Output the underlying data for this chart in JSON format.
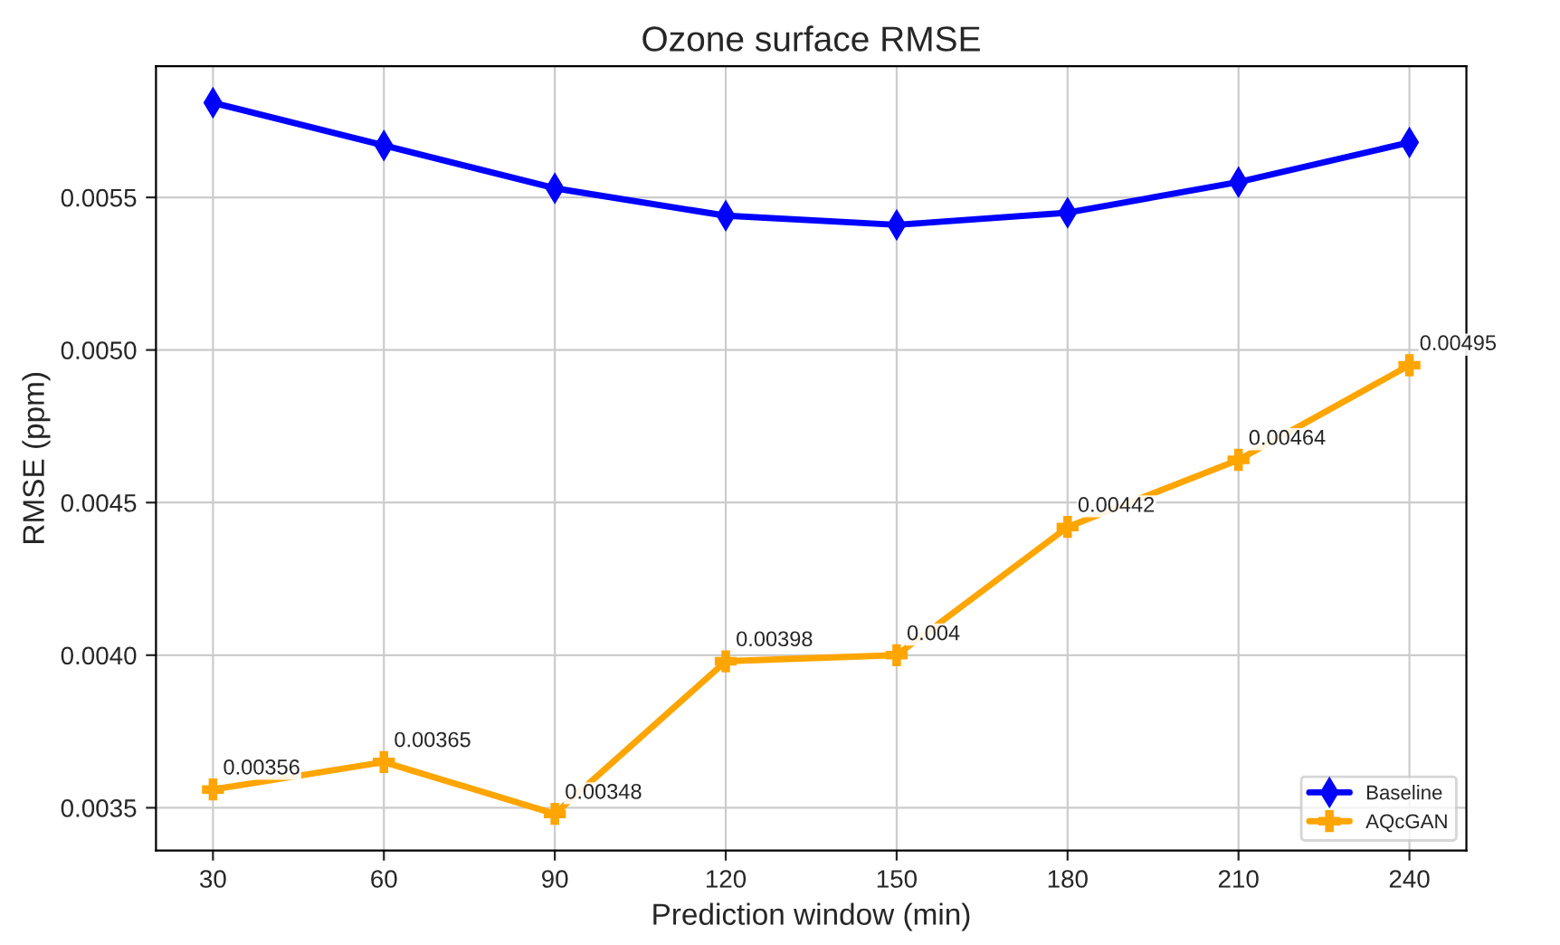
{
  "chart_data": {
    "type": "line",
    "title": "Ozone surface RMSE",
    "xlabel": "Prediction window (min)",
    "ylabel": "RMSE (ppm)",
    "x": [
      30,
      60,
      90,
      120,
      150,
      180,
      210,
      240
    ],
    "series": [
      {
        "name": "Baseline",
        "color": "#0000ff",
        "marker": "diamond",
        "values": [
          0.00581,
          0.00567,
          0.00553,
          0.00544,
          0.00541,
          0.00545,
          0.00555,
          0.00568
        ]
      },
      {
        "name": "AQcGAN",
        "color": "#ffa500",
        "marker": "cross",
        "data_labels": true,
        "values": [
          0.00356,
          0.00365,
          0.00348,
          0.00398,
          0.004,
          0.00442,
          0.00464,
          0.00495
        ]
      }
    ],
    "xlim": [
      20,
      250
    ],
    "xticks": [
      30,
      60,
      90,
      120,
      150,
      180,
      210,
      240
    ],
    "ylim": [
      0.00336,
      0.00593
    ],
    "yticks": [
      0.0035,
      {
        "value": 0.004,
        "label": "0.0040"
      },
      0.0045,
      {
        "value": 0.005,
        "label": "0.0050"
      },
      0.0055
    ],
    "grid": true,
    "legend": "bottom right",
    "line_style": "solid"
  }
}
